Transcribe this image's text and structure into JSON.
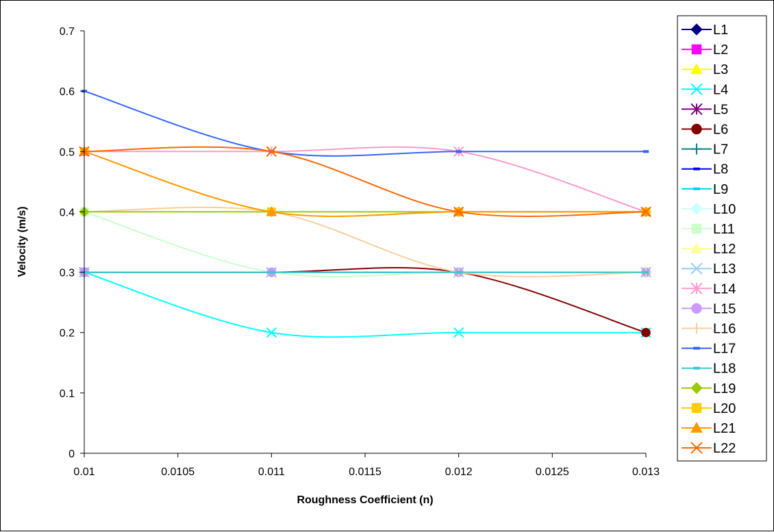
{
  "chart_data": {
    "type": "line",
    "title": "",
    "xlabel": "Roughness Coefficient (n)",
    "ylabel": "Velocity (m/s)",
    "x": [
      0.01,
      0.011,
      0.012,
      0.013
    ],
    "x_tick_values": [
      0.01,
      0.0105,
      0.011,
      0.0115,
      0.012,
      0.0125,
      0.013
    ],
    "x_tick_labels": [
      "0.01",
      "0.0105",
      "0.011",
      "0.0115",
      "0.012",
      "0.0125",
      "0.013"
    ],
    "xlim": [
      0.01,
      0.013
    ],
    "y_tick_values": [
      0,
      0.1,
      0.2,
      0.3,
      0.4,
      0.5,
      0.6,
      0.7
    ],
    "y_tick_labels": [
      "0",
      "0.1",
      "0.2",
      "0.3",
      "0.4",
      "0.5",
      "0.6",
      "0.7"
    ],
    "ylim": [
      0,
      0.7
    ],
    "grid": false,
    "smooth": true,
    "legend_position": "right",
    "series": [
      {
        "name": "L1",
        "values": [
          0.3,
          0.3,
          0.3,
          0.3
        ],
        "color": "#000080",
        "marker": "diamond"
      },
      {
        "name": "L2",
        "values": [
          0.3,
          0.3,
          0.3,
          0.3
        ],
        "color": "#ff00ff",
        "marker": "square"
      },
      {
        "name": "L3",
        "values": [
          0.3,
          0.3,
          0.3,
          0.3
        ],
        "color": "#ffff00",
        "marker": "triangle"
      },
      {
        "name": "L4",
        "values": [
          0.3,
          0.2,
          0.2,
          0.2
        ],
        "color": "#00ffff",
        "marker": "x"
      },
      {
        "name": "L5",
        "values": [
          0.3,
          0.3,
          0.3,
          0.3
        ],
        "color": "#800080",
        "marker": "star"
      },
      {
        "name": "L6",
        "values": [
          0.3,
          0.3,
          0.3,
          0.2
        ],
        "color": "#800000",
        "marker": "circle"
      },
      {
        "name": "L7",
        "values": [
          0.3,
          0.3,
          0.3,
          0.3
        ],
        "color": "#008080",
        "marker": "plus"
      },
      {
        "name": "L8",
        "values": [
          0.3,
          0.3,
          0.3,
          0.3
        ],
        "color": "#0000ff",
        "marker": "dash"
      },
      {
        "name": "L9",
        "values": [
          0.3,
          0.3,
          0.3,
          0.3
        ],
        "color": "#00ccff",
        "marker": "bar"
      },
      {
        "name": "L10",
        "values": [
          0.4,
          0.3,
          0.3,
          0.3
        ],
        "color": "#ccffff",
        "marker": "diamond"
      },
      {
        "name": "L11",
        "values": [
          0.4,
          0.3,
          0.3,
          0.3
        ],
        "color": "#ccffcc",
        "marker": "square"
      },
      {
        "name": "L12",
        "values": [
          0.3,
          0.3,
          0.3,
          0.3
        ],
        "color": "#ffff99",
        "marker": "triangle"
      },
      {
        "name": "L13",
        "values": [
          0.3,
          0.3,
          0.3,
          0.3
        ],
        "color": "#99ccff",
        "marker": "x"
      },
      {
        "name": "L14",
        "values": [
          0.5,
          0.5,
          0.5,
          0.4
        ],
        "color": "#ff99cc",
        "marker": "star"
      },
      {
        "name": "L15",
        "values": [
          0.3,
          0.3,
          0.3,
          0.3
        ],
        "color": "#cc99ff",
        "marker": "circle"
      },
      {
        "name": "L16",
        "values": [
          0.4,
          0.4,
          0.3,
          0.3
        ],
        "color": "#ffcc99",
        "marker": "plus"
      },
      {
        "name": "L17",
        "values": [
          0.6,
          0.5,
          0.5,
          0.5
        ],
        "color": "#3366ff",
        "marker": "dash"
      },
      {
        "name": "L18",
        "values": [
          0.3,
          0.3,
          0.3,
          0.3
        ],
        "color": "#33cccc",
        "marker": "bar"
      },
      {
        "name": "L19",
        "values": [
          0.4,
          0.4,
          0.4,
          0.4
        ],
        "color": "#99cc00",
        "marker": "diamond"
      },
      {
        "name": "L20",
        "values": [
          0.5,
          0.4,
          0.4,
          0.4
        ],
        "color": "#ffcc00",
        "marker": "square"
      },
      {
        "name": "L21",
        "values": [
          0.5,
          0.4,
          0.4,
          0.4
        ],
        "color": "#ff9900",
        "marker": "triangle"
      },
      {
        "name": "L22",
        "values": [
          0.5,
          0.5,
          0.4,
          0.4
        ],
        "color": "#ff6600",
        "marker": "x"
      }
    ]
  }
}
